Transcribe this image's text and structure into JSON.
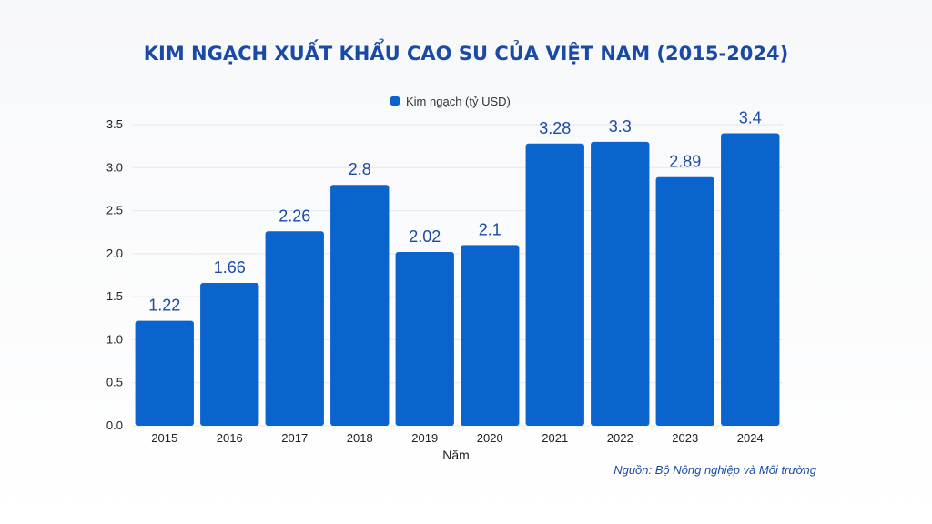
{
  "chart_data": {
    "type": "bar",
    "title": "KIM NGẠCH XUẤT KHẨU CAO SU CỦA VIỆT NAM (2015-2024)",
    "xlabel": "Năm",
    "ylabel": "",
    "categories": [
      "2015",
      "2016",
      "2017",
      "2018",
      "2019",
      "2020",
      "2021",
      "2022",
      "2023",
      "2024"
    ],
    "series": [
      {
        "name": "Kim ngạch (tỷ USD)",
        "values": [
          1.22,
          1.66,
          2.26,
          2.8,
          2.02,
          2.1,
          3.28,
          3.3,
          2.89,
          3.4
        ],
        "labels": [
          "1.22",
          "1.66",
          "2.26",
          "2.8",
          "2.02",
          "2.1",
          "3.28",
          "3.3",
          "2.89",
          "3.4"
        ]
      }
    ],
    "ylim": [
      0,
      3.5
    ],
    "yticks": [
      "0.0",
      "0.5",
      "1.0",
      "1.5",
      "2.0",
      "2.5",
      "3.0",
      "3.5"
    ],
    "grid": true,
    "legend_position": "top-center",
    "bar_color": "#0b63ce",
    "text_color": "#1a4aa6"
  },
  "source_note": "Nguồn: Bộ Nông nghiệp và Môi trường"
}
